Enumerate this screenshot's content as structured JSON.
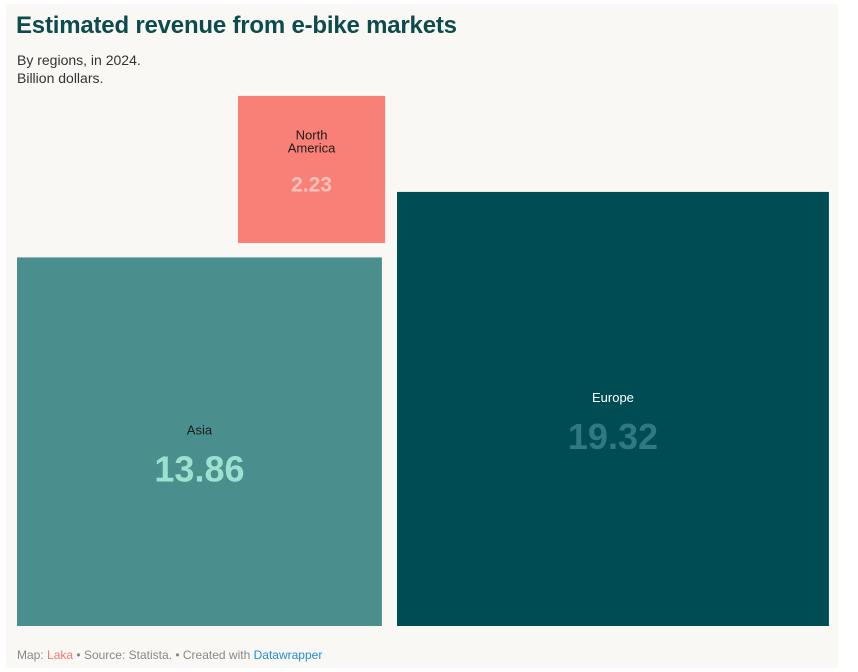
{
  "title": "Estimated revenue from e-bike markets",
  "subtitle": [
    "By regions, in 2024.",
    "Billion dollars."
  ],
  "footer": {
    "map_label": "Map:",
    "map_by": "Laka",
    "source": "Source: Statista.",
    "created_with": "Created with",
    "tool": "Datawrapper",
    "separator": "•"
  },
  "colors": {
    "north_america": "#f88077",
    "asia": "#4a8f8d",
    "europe": "#004c55",
    "background": "#f9f8f5"
  },
  "chart_data": {
    "type": "treemap",
    "title": "Estimated revenue from e-bike markets",
    "unit": "Billion dollars",
    "items": [
      {
        "name": "North America",
        "label_lines": [
          "North",
          "America"
        ],
        "value": 2.23,
        "color": "#f88077",
        "label_color": "#1c1c1c",
        "value_color": "#fdc3bb"
      },
      {
        "name": "Asia",
        "label_lines": [
          "Asia"
        ],
        "value": 13.86,
        "color": "#4a8f8d",
        "label_color": "#1c1c1c",
        "value_color": "#9de0cf"
      },
      {
        "name": "Europe",
        "label_lines": [
          "Europe"
        ],
        "value": 19.32,
        "color": "#004c55",
        "label_color": "#ffffff",
        "value_color": "#2e7a80"
      }
    ]
  }
}
